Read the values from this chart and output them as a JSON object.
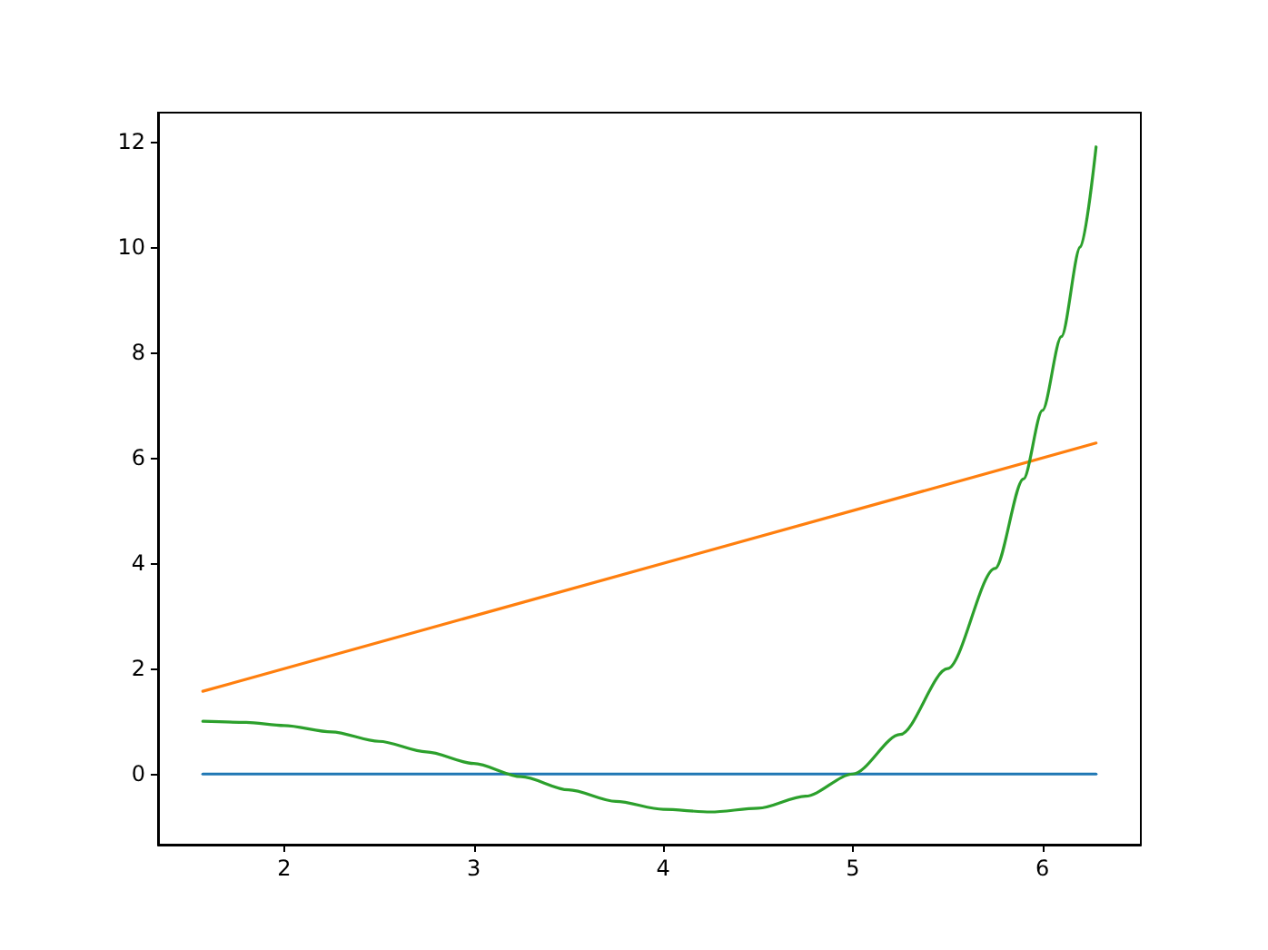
{
  "chart_data": {
    "type": "line",
    "xlim": [
      1.335,
      6.519
    ],
    "ylim": [
      -1.34,
      12.55
    ],
    "xticks": [
      2,
      3,
      4,
      5,
      6
    ],
    "yticks": [
      0,
      2,
      4,
      6,
      8,
      10,
      12
    ],
    "grid": false,
    "marker": "none",
    "line_style": "solid",
    "series": [
      {
        "color": "#1f77b4",
        "x": [
          1.571,
          6.283
        ],
        "values": [
          0,
          0
        ]
      },
      {
        "color": "#ff7f0e",
        "x": [
          1.571,
          6.283
        ],
        "values": [
          1.57,
          6.28
        ]
      },
      {
        "color": "#2ca02c",
        "x": [
          1.571,
          1.8,
          2,
          2.25,
          2.5,
          2.75,
          3,
          3.25,
          3.5,
          3.75,
          4,
          4.25,
          4.5,
          4.75,
          5,
          5.25,
          5.5,
          5.75,
          5.9,
          6,
          6.1,
          6.2,
          6.283
        ],
        "values": [
          1.0,
          0.98,
          0.92,
          0.8,
          0.62,
          0.42,
          0.2,
          -0.05,
          -0.3,
          -0.52,
          -0.67,
          -0.72,
          -0.65,
          -0.42,
          0.0,
          0.75,
          2.0,
          3.9,
          5.6,
          6.9,
          8.3,
          10.0,
          11.9
        ]
      }
    ]
  }
}
